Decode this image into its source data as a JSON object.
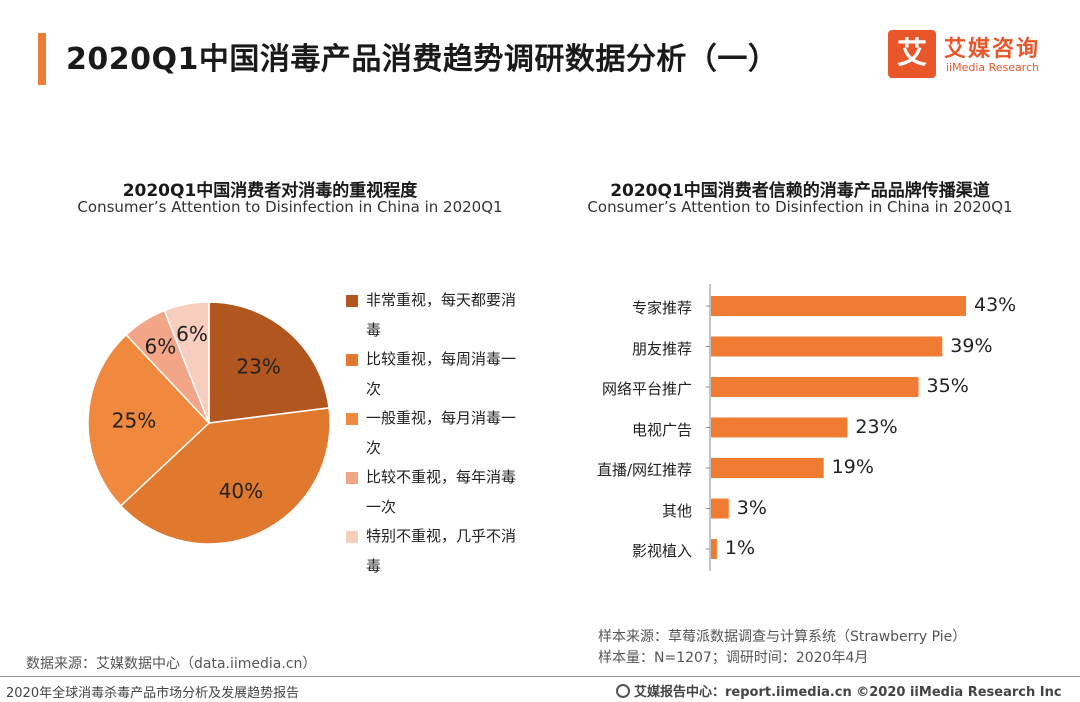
{
  "header": {
    "title": "2020Q1中国消毒产品消费趋势调研数据分析（一）",
    "logo_mark": "艾",
    "logo_cn": "艾媒咨询",
    "logo_en": "iiMedia Research"
  },
  "colors": {
    "accent": "#f07c33",
    "brand": "#e8562a",
    "pie": [
      "#b0561e",
      "#e0782e",
      "#f0883e",
      "#f2a587",
      "#f7cdbd"
    ],
    "bar": "#f07c33"
  },
  "chart_data": [
    {
      "type": "pie",
      "title": "2020Q1中国消费者对消毒的重视程度",
      "subtitle": "Consumer’s Attention to Disinfection in China in 2020Q1",
      "categories": [
        "非常重视，每天都要消毒",
        "比较重视，每周消毒一次",
        "一般重视，每月消毒一次",
        "比较不重视，每年消毒一次",
        "特别不重视，几乎不消毒"
      ],
      "values": [
        23,
        40,
        25,
        6,
        6
      ],
      "data_labels": [
        "23%",
        "40%",
        "25%",
        "6%",
        "6%"
      ],
      "legend_position": "right"
    },
    {
      "type": "bar",
      "orientation": "horizontal",
      "title": "2020Q1中国消费者信赖的消毒产品品牌传播渠道",
      "subtitle": "Consumer’s Attention to Disinfection in China in 2020Q1",
      "categories": [
        "专家推荐",
        "朋友推荐",
        "网络平台推广",
        "电视广告",
        "直播/网红推荐",
        "其他",
        "影视植入"
      ],
      "values": [
        43,
        39,
        35,
        23,
        19,
        3,
        1
      ],
      "data_labels": [
        "43%",
        "39%",
        "35%",
        "23%",
        "19%",
        "3%",
        "1%"
      ],
      "xlim": [
        0,
        45
      ],
      "grid": false
    }
  ],
  "notes": {
    "sample_source": "样本来源：草莓派数据调查与计算系统（Strawberry Pie）",
    "sample_size": "样本量：N=1207；调研时间：2020年4月",
    "data_source": "数据来源：艾媒数据中心（data.iimedia.cn）"
  },
  "footer": {
    "report": "2020年全球消毒杀毒产品市场分析及发展趋势报告",
    "site": "艾媒报告中心：report.iimedia.cn  ©2020  iiMedia Research  Inc"
  }
}
